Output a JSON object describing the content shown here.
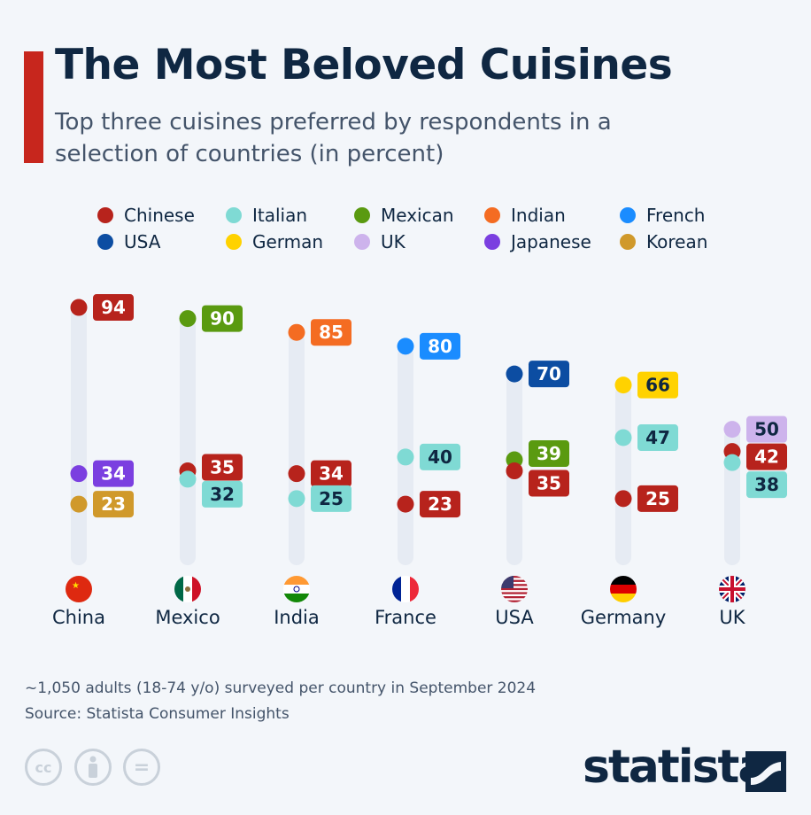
{
  "title": "The Most Beloved Cuisines",
  "subtitle": "Top three cuisines preferred by respondents in a selection of countries (in percent)",
  "legend": [
    {
      "name": "Chinese",
      "color": "#b7231c"
    },
    {
      "name": "Italian",
      "color": "#7fdad4"
    },
    {
      "name": "Mexican",
      "color": "#5a9a10"
    },
    {
      "name": "Indian",
      "color": "#f46c22"
    },
    {
      "name": "French",
      "color": "#1a8cff"
    },
    {
      "name": "USA",
      "color": "#0c4da2"
    },
    {
      "name": "German",
      "color": "#ffd200"
    },
    {
      "name": "UK",
      "color": "#cdb3ec"
    },
    {
      "name": "Japanese",
      "color": "#7b3fe0"
    },
    {
      "name": "Korean",
      "color": "#d0992b"
    }
  ],
  "chart_data": {
    "type": "dot",
    "ylim": [
      0,
      100
    ],
    "categories": [
      "China",
      "Mexico",
      "India",
      "France",
      "USA",
      "Germany",
      "UK"
    ],
    "points": [
      [
        {
          "cuisine": "Chinese",
          "value": 94
        },
        {
          "cuisine": "Japanese",
          "value": 34
        },
        {
          "cuisine": "Korean",
          "value": 23
        }
      ],
      [
        {
          "cuisine": "Mexican",
          "value": 90
        },
        {
          "cuisine": "Chinese",
          "value": 35
        },
        {
          "cuisine": "Italian",
          "value": 32
        }
      ],
      [
        {
          "cuisine": "Indian",
          "value": 85
        },
        {
          "cuisine": "Chinese",
          "value": 34
        },
        {
          "cuisine": "Italian",
          "value": 25
        }
      ],
      [
        {
          "cuisine": "French",
          "value": 80
        },
        {
          "cuisine": "Italian",
          "value": 40
        },
        {
          "cuisine": "Chinese",
          "value": 23
        }
      ],
      [
        {
          "cuisine": "USA",
          "value": 70
        },
        {
          "cuisine": "Mexican",
          "value": 39
        },
        {
          "cuisine": "Chinese",
          "value": 35
        }
      ],
      [
        {
          "cuisine": "German",
          "value": 66
        },
        {
          "cuisine": "Italian",
          "value": 47
        },
        {
          "cuisine": "Chinese",
          "value": 25
        }
      ],
      [
        {
          "cuisine": "UK",
          "value": 50
        },
        {
          "cuisine": "Chinese",
          "value": 42
        },
        {
          "cuisine": "Italian",
          "value": 38
        }
      ]
    ],
    "flags": [
      "china-flag",
      "mexico-flag",
      "india-flag",
      "france-flag",
      "usa-flag",
      "germany-flag",
      "uk-flag"
    ]
  },
  "footer": {
    "note": "~1,050 adults (18-74 y/o) surveyed per country in September 2024",
    "source": "Source: Statista Consumer Insights",
    "license_icons": [
      "cc-icon",
      "attribution-icon",
      "no-derivatives-icon"
    ],
    "cc_text": "cc",
    "eq_text": "=",
    "logo": "statista"
  }
}
